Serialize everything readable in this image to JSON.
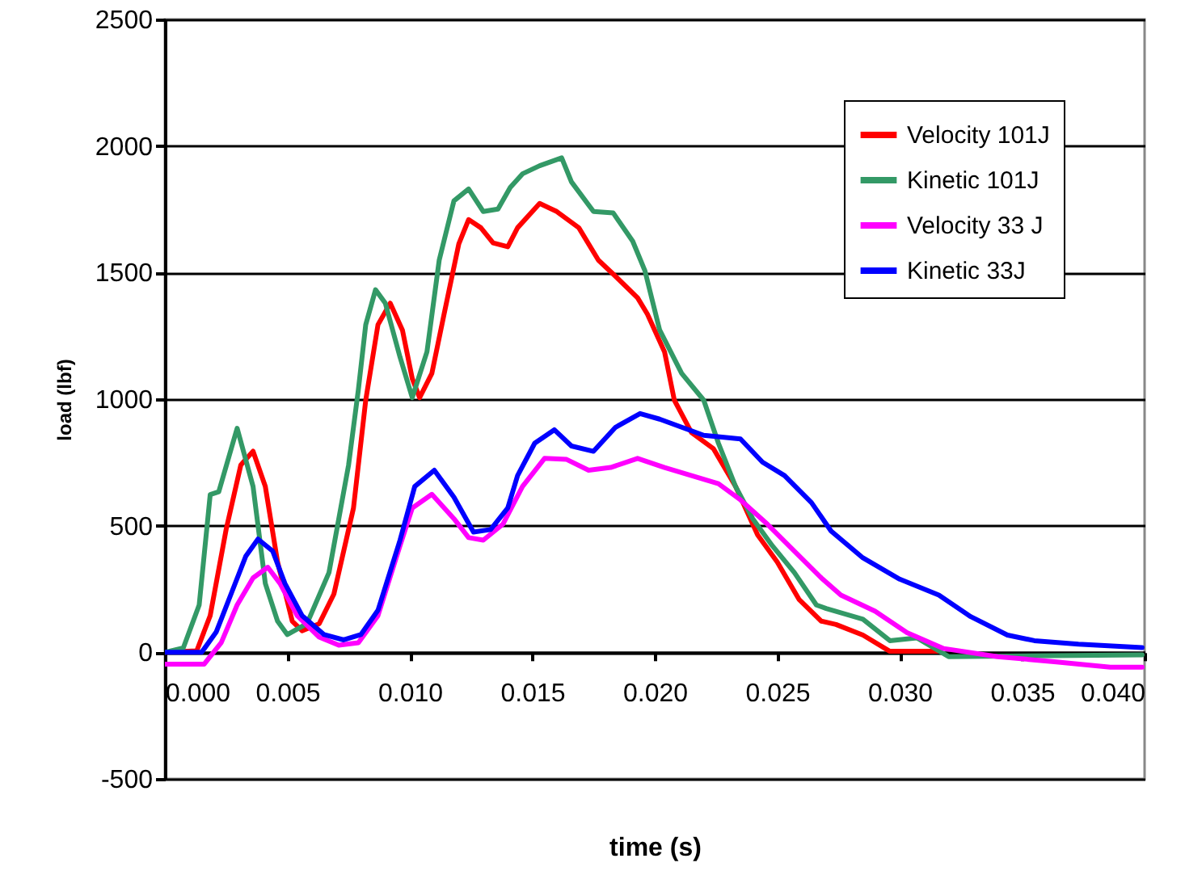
{
  "chart_data": {
    "type": "line",
    "xlabel": "time (s)",
    "ylabel": "load (lbf)",
    "xlim": [
      0,
      0.04
    ],
    "ylim": [
      -500,
      2500
    ],
    "xticks": [
      {
        "value": 0,
        "label": "0.000"
      },
      {
        "value": 0.005,
        "label": "0.005"
      },
      {
        "value": 0.01,
        "label": "0.010"
      },
      {
        "value": 0.015,
        "label": "0.015"
      },
      {
        "value": 0.02,
        "label": "0.020"
      },
      {
        "value": 0.025,
        "label": "0.025"
      },
      {
        "value": 0.03,
        "label": "0.030"
      },
      {
        "value": 0.035,
        "label": "0.035"
      },
      {
        "value": 0.04,
        "label": "0.040"
      }
    ],
    "yticks": [
      -500,
      0,
      500,
      1000,
      1500,
      2000,
      2500
    ],
    "grid": "y",
    "legend": "top right",
    "line_style": "solid",
    "marker": "none",
    "series": [
      {
        "name": "Velocity 101J",
        "color": "#ff0000",
        "x": [
          0,
          0.0013,
          0.00185,
          0.0025,
          0.0031,
          0.0036,
          0.0041,
          0.0046,
          0.0052,
          0.0056,
          0.0063,
          0.0069,
          0.0077,
          0.0082,
          0.0087,
          0.0092,
          0.0097,
          0.0101,
          0.0104,
          0.0109,
          0.0114,
          0.012,
          0.0124,
          0.0129,
          0.0134,
          0.014,
          0.0144,
          0.0153,
          0.016,
          0.0169,
          0.0177,
          0.0184,
          0.0193,
          0.0197,
          0.0204,
          0.0208,
          0.0215,
          0.0224,
          0.0233,
          0.0242,
          0.025,
          0.0259,
          0.0268,
          0.0274,
          0.0285,
          0.0296,
          0.0316
        ],
        "values": [
          0,
          6,
          145,
          485,
          740,
          794,
          655,
          357,
          123,
          85,
          113,
          230,
          570,
          996,
          1294,
          1379,
          1272,
          1081,
          1006,
          1102,
          1336,
          1613,
          1709,
          1677,
          1617,
          1602,
          1677,
          1773,
          1741,
          1677,
          1549,
          1485,
          1400,
          1336,
          1187,
          996,
          868,
          804,
          655,
          464,
          357,
          208,
          123,
          110,
          68,
          4,
          4
        ]
      },
      {
        "name": "Kinetic 101J",
        "color": "#339966",
        "x": [
          0,
          0.00075,
          0.0014,
          0.00185,
          0.0022,
          0.00295,
          0.0036,
          0.0041,
          0.0046,
          0.005,
          0.0058,
          0.0067,
          0.0075,
          0.0079,
          0.0082,
          0.0086,
          0.009,
          0.0096,
          0.0101,
          0.0107,
          0.0112,
          0.0118,
          0.0124,
          0.013,
          0.0136,
          0.0141,
          0.0146,
          0.0153,
          0.0162,
          0.0166,
          0.0175,
          0.0183,
          0.0191,
          0.0196,
          0.0202,
          0.0211,
          0.022,
          0.0226,
          0.0233,
          0.024,
          0.0248,
          0.0257,
          0.0266,
          0.027,
          0.0285,
          0.0296,
          0.0307,
          0.032,
          0.0399
        ],
        "values": [
          0,
          17,
          187,
          623,
          634,
          885,
          655,
          272,
          123,
          70,
          113,
          315,
          740,
          1038,
          1294,
          1432,
          1379,
          1166,
          1006,
          1187,
          1549,
          1783,
          1830,
          1741,
          1751,
          1836,
          1890,
          1922,
          1953,
          1858,
          1741,
          1736,
          1624,
          1507,
          1273,
          1102,
          996,
          826,
          655,
          528,
          421,
          315,
          187,
          173,
          131,
          46,
          57,
          -17,
          -10
        ]
      },
      {
        "name": "Velocity 33 J",
        "color": "#ff00ff",
        "x": [
          0,
          0.0016,
          0.0023,
          0.00295,
          0.0036,
          0.0042,
          0.0047,
          0.0054,
          0.0063,
          0.0071,
          0.0079,
          0.0087,
          0.0096,
          0.0101,
          0.0109,
          0.0118,
          0.0124,
          0.013,
          0.0138,
          0.0146,
          0.0155,
          0.0164,
          0.0173,
          0.0182,
          0.0193,
          0.0204,
          0.0215,
          0.0226,
          0.0235,
          0.0246,
          0.0257,
          0.0268,
          0.0276,
          0.029,
          0.0303,
          0.0318,
          0.034,
          0.0364,
          0.0386,
          0.0399
        ],
        "values": [
          -47,
          -47,
          38,
          187,
          294,
          336,
          272,
          145,
          60,
          28,
          38,
          145,
          421,
          570,
          624,
          528,
          453,
          443,
          506,
          655,
          766,
          762,
          719,
          730,
          766,
          730,
          698,
          666,
          602,
          506,
          400,
          294,
          226,
          162,
          78,
          15,
          -17,
          -38,
          -59,
          -59
        ]
      },
      {
        "name": "Kinetic 33J",
        "color": "#0000ff",
        "x": [
          0,
          0.0015,
          0.0021,
          0.0027,
          0.0033,
          0.0038,
          0.0044,
          0.0049,
          0.0056,
          0.0065,
          0.0073,
          0.008,
          0.0087,
          0.0096,
          0.0102,
          0.011,
          0.0118,
          0.0126,
          0.0133,
          0.014,
          0.0144,
          0.0151,
          0.0159,
          0.0166,
          0.0175,
          0.0184,
          0.0194,
          0.0202,
          0.0211,
          0.022,
          0.0235,
          0.0244,
          0.0253,
          0.0264,
          0.0272,
          0.0285,
          0.03,
          0.0316,
          0.0329,
          0.0344,
          0.0355,
          0.0373,
          0.0399
        ],
        "values": [
          0,
          0,
          81,
          230,
          379,
          447,
          400,
          272,
          145,
          70,
          49,
          70,
          166,
          443,
          655,
          719,
          613,
          475,
          485,
          570,
          698,
          826,
          879,
          815,
          794,
          889,
          943,
          921,
          889,
          857,
          843,
          751,
          698,
          591,
          479,
          373,
          289,
          226,
          141,
          68,
          46,
          32,
          19
        ]
      }
    ]
  }
}
